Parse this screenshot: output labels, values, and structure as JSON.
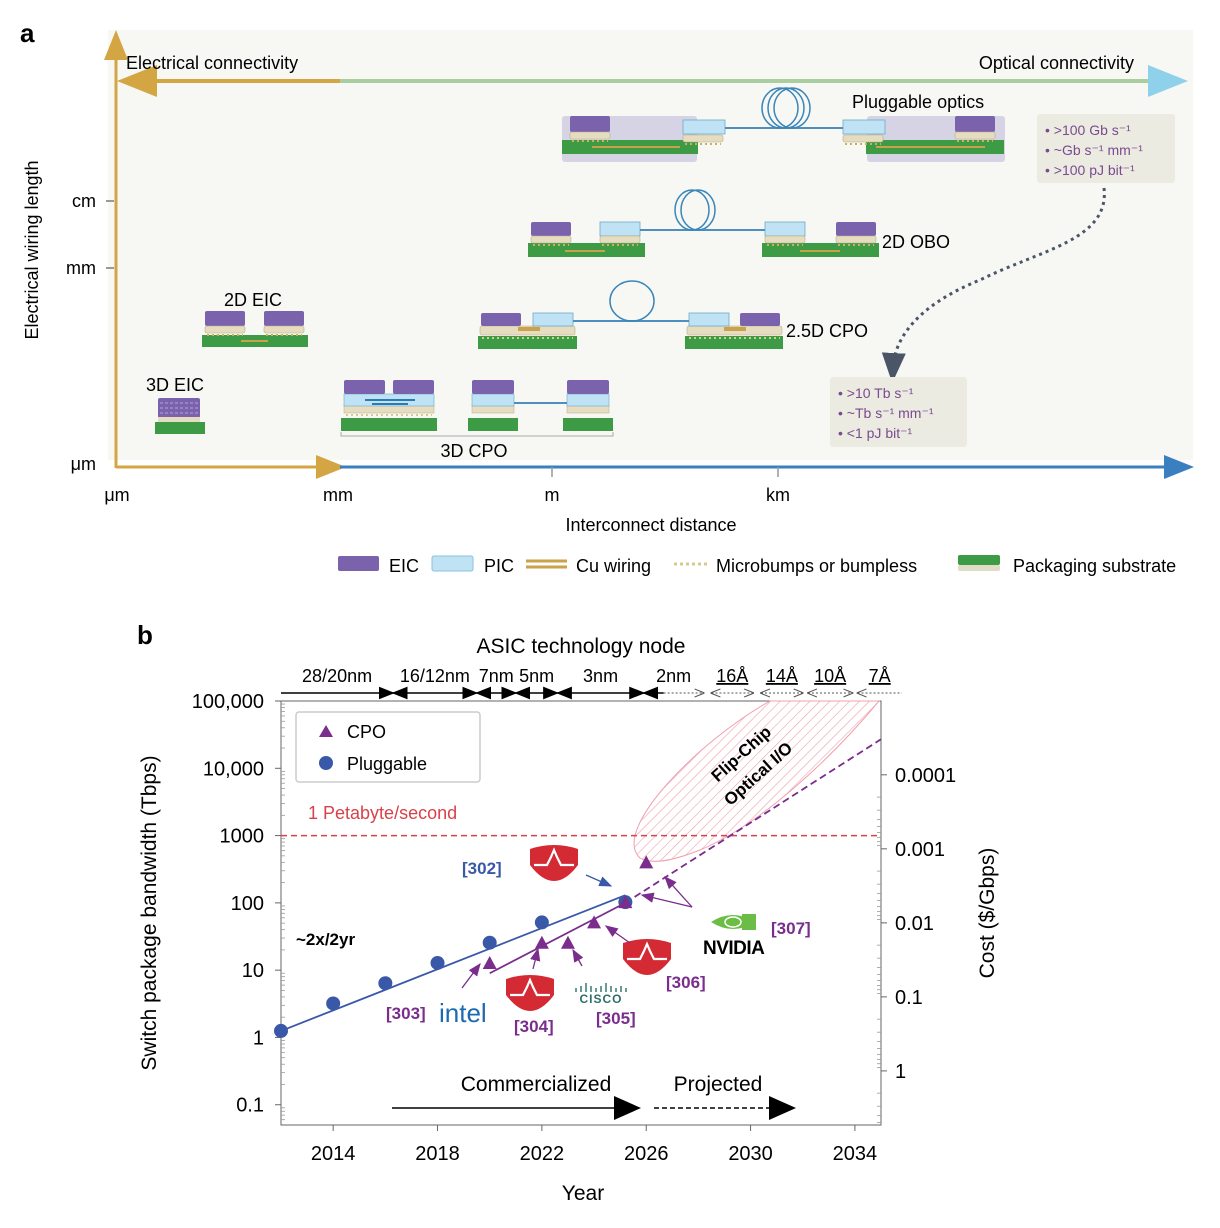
{
  "panel_a": {
    "label": "a",
    "top_arrow": {
      "left": "Electrical connectivity",
      "right": "Optical connectivity"
    },
    "y_axis": {
      "title": "Electrical wiring length",
      "ticks": [
        "cm",
        "mm",
        "μm"
      ]
    },
    "x_axis": {
      "title": "Interconnect distance",
      "ticks": [
        "μm",
        "mm",
        "m",
        "km"
      ]
    },
    "architectures": [
      {
        "name": "Pluggable optics"
      },
      {
        "name": "2D OBO"
      },
      {
        "name": "2.5D CPO"
      },
      {
        "name": "2D EIC"
      },
      {
        "name": "3D EIC"
      },
      {
        "name": "3D CPO"
      }
    ],
    "spec_box_top": {
      "lines": [
        "• >100 Gb s⁻¹",
        "• ~Gb s⁻¹ mm⁻¹",
        "• >100 pJ bit⁻¹"
      ]
    },
    "spec_box_bottom": {
      "lines": [
        "• >10 Tb s⁻¹",
        "• ~Tb s⁻¹ mm⁻¹",
        "• <1 pJ bit⁻¹"
      ]
    },
    "legend": [
      {
        "label": "EIC",
        "color": "#7b62ad"
      },
      {
        "label": "PIC",
        "color": "#bfe3f5"
      },
      {
        "label": "Cu wiring",
        "color": "#c9a249"
      },
      {
        "label": "Microbumps or bumpless",
        "color": "#d8c98e"
      },
      {
        "label": "Packaging substrate",
        "color": "#3d9a45"
      }
    ],
    "colors": {
      "electrical": "#d4a543",
      "optical": "#a9cfa0",
      "distance_axis": "#3a7fc0",
      "spec_text": "#7a4b8f"
    }
  },
  "chart_data": {
    "type": "scatter",
    "panel_label": "b",
    "title": "ASIC technology node",
    "xlabel": "Year",
    "ylabel": "Switch package bandwidth (Tbps)",
    "y2label": "Cost ($/Gbps)",
    "xlim": [
      2012,
      2035
    ],
    "ylim": [
      0.05,
      100000
    ],
    "yscale": "log",
    "x_ticks": [
      2014,
      2018,
      2022,
      2026,
      2030,
      2034
    ],
    "y_ticks": [
      {
        "v": 0.1,
        "label": "0.1"
      },
      {
        "v": 1,
        "label": "1"
      },
      {
        "v": 10,
        "label": "10"
      },
      {
        "v": 100,
        "label": "100"
      },
      {
        "v": 1000,
        "label": "1000"
      },
      {
        "v": 10000,
        "label": "10,000"
      },
      {
        "v": 100000,
        "label": "100,000"
      }
    ],
    "y2_ticks": [
      {
        "v": 0.0001,
        "label": "0.0001"
      },
      {
        "v": 0.001,
        "label": "0.001"
      },
      {
        "v": 0.01,
        "label": "0.01"
      },
      {
        "v": 0.1,
        "label": "0.1"
      },
      {
        "v": 1,
        "label": "1"
      }
    ],
    "y2_mapping_note": "cost tick at 0.0001 aligns with ~8000 Tbps; each decade of cost spans ~1.1 decades of bandwidth",
    "legend": {
      "position": "top-left",
      "entries": [
        {
          "label": "CPO",
          "marker": "triangle",
          "color": "#7a2d8c"
        },
        {
          "label": "Pluggable",
          "marker": "circle",
          "color": "#3a58a8"
        }
      ]
    },
    "series": [
      {
        "name": "Pluggable",
        "marker": "circle",
        "color": "#3a58a8",
        "x": [
          2012,
          2014,
          2016,
          2018,
          2020,
          2022,
          2025.2
        ],
        "y": [
          1.25,
          3.2,
          6.4,
          12.8,
          25.6,
          51.2,
          102.4
        ]
      },
      {
        "name": "CPO",
        "marker": "triangle",
        "color": "#7a2d8c",
        "x": [
          2020,
          2022,
          2023,
          2024,
          2025.2,
          2026
        ],
        "y": [
          12.8,
          25.6,
          25.6,
          51.2,
          102.4,
          400
        ]
      }
    ],
    "trend_lines": [
      {
        "name": "Pluggable trend",
        "style": "solid",
        "color": "#3a58a8",
        "x": [
          2012,
          2025.2
        ],
        "y": [
          1.25,
          130
        ]
      },
      {
        "name": "CPO trend",
        "style": "solid",
        "color": "#7a2d8c",
        "x": [
          2020,
          2025.2
        ],
        "y": [
          9,
          100
        ]
      },
      {
        "name": "CPO projection",
        "style": "dashed",
        "color": "#7a2d8c",
        "x": [
          2025.2,
          2035
        ],
        "y": [
          100,
          27000
        ]
      }
    ],
    "reference_line": {
      "label": "1 Petabyte/second",
      "y": 1000,
      "color": "#d9414b",
      "style": "dashed"
    },
    "region": {
      "label_line1": "Flip-Chip",
      "label_line2": "Optical I/O",
      "color": "#f0a0ae"
    },
    "annotations": {
      "growth_rate": "~2x/2yr",
      "commercialized": "Commercialized",
      "projected": "Projected",
      "refs": [
        {
          "text": "[302]",
          "color": "#3a58a8",
          "company": "broadcom"
        },
        {
          "text": "[303]",
          "color": "#7a2d8c",
          "company": "intel"
        },
        {
          "text": "[304]",
          "color": "#7a2d8c",
          "company": "broadcom"
        },
        {
          "text": "[305]",
          "color": "#7a2d8c",
          "company": "cisco"
        },
        {
          "text": "[306]",
          "color": "#7a2d8c",
          "company": "broadcom"
        },
        {
          "text": "[307]",
          "color": "#7a2d8c",
          "company": "nvidia"
        }
      ],
      "logos": {
        "intel": "intel",
        "cisco": "CISCO",
        "nvidia": "NVIDIA"
      }
    },
    "tech_nodes": [
      {
        "label": "28/20nm",
        "x0": 2012,
        "x1": 2016.3,
        "style": "solid",
        "left_head": false,
        "right_head": true
      },
      {
        "label": "16/12nm",
        "x0": 2016.3,
        "x1": 2019.5,
        "style": "solid",
        "left_head": true,
        "right_head": true
      },
      {
        "label": "7nm",
        "x0": 2019.5,
        "x1": 2021,
        "style": "solid",
        "left_head": true,
        "right_head": true
      },
      {
        "label": "5nm",
        "x0": 2021,
        "x1": 2022.6,
        "style": "solid",
        "left_head": true,
        "right_head": true
      },
      {
        "label": "3nm",
        "x0": 2022.6,
        "x1": 2025.9,
        "style": "solid",
        "left_head": true,
        "right_head": true
      },
      {
        "label": "2nm",
        "x0": 2025.9,
        "x1": 2028.2,
        "style": "mixed",
        "left_head": true,
        "right_head": true
      },
      {
        "label": "16Å",
        "x0": 2028.5,
        "x1": 2030.1,
        "style": "dotted",
        "left_head": true,
        "right_head": true
      },
      {
        "label": "14Å",
        "x0": 2030.4,
        "x1": 2032,
        "style": "dotted",
        "left_head": true,
        "right_head": true
      },
      {
        "label": "10Å",
        "x0": 2032.2,
        "x1": 2033.9,
        "style": "dotted",
        "left_head": true,
        "right_head": true
      },
      {
        "label": "7Å",
        "x0": 2034.1,
        "x1": 2035.8,
        "style": "dotted",
        "left_head": true,
        "right_head": false
      }
    ]
  }
}
